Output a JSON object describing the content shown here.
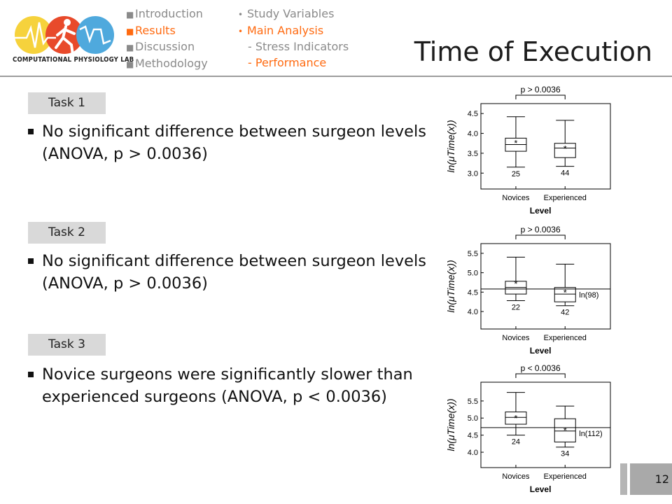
{
  "logo": {
    "caption": "COMPUTATIONAL PHYSIOLOGY LAB"
  },
  "nav": {
    "col1": [
      {
        "label": "Introduction",
        "active": false
      },
      {
        "label": "Results",
        "active": true
      },
      {
        "label": "Discussion",
        "active": false
      },
      {
        "label": "Methodology",
        "active": false
      }
    ],
    "col2": [
      {
        "label": "Study Variables",
        "active": false,
        "sub": false
      },
      {
        "label": "Main Analysis",
        "active": true,
        "sub": false
      },
      {
        "label": "- Stress Indicators",
        "active": false,
        "sub": true
      },
      {
        "label": "- Performance",
        "active": true,
        "sub": true
      }
    ]
  },
  "title": "Time of Execution",
  "tasks": [
    {
      "label": "Task 1",
      "lines": [
        "No significant difference  between surgeon levels",
        "(ANOVA, p > 0.0036)"
      ]
    },
    {
      "label": "Task 2",
      "lines": [
        "No significant difference  between surgeon levels",
        "(ANOVA, p > 0.0036)"
      ]
    },
    {
      "label": "Task 3",
      "lines": [
        "Novice surgeons were significantly slower than",
        "experienced surgeons (ANOVA, p < 0.0036)"
      ]
    }
  ],
  "page_number": "12",
  "chart_data": [
    {
      "type": "box",
      "categories": [
        "Novices",
        "Experienced"
      ],
      "xlabel": "Level",
      "ylabel": "ln(μTime(x))",
      "yticks": [
        3.0,
        3.5,
        4.0,
        4.5
      ],
      "ylim": [
        2.6,
        4.75
      ],
      "significance": "p > 0.0036",
      "boxes": [
        {
          "whisker_low": 3.15,
          "q1": 3.55,
          "median": 3.72,
          "q3": 3.88,
          "whisker_high": 4.42,
          "mean": 3.76,
          "n": "25"
        },
        {
          "whisker_low": 3.17,
          "q1": 3.39,
          "median": 3.63,
          "q3": 3.75,
          "whisker_high": 4.33,
          "mean": 3.62,
          "n": "44"
        }
      ],
      "reference": null
    },
    {
      "type": "box",
      "categories": [
        "Novices",
        "Experienced"
      ],
      "xlabel": "Level",
      "ylabel": "ln(μTime(x))",
      "yticks": [
        4.0,
        4.5,
        5.0,
        5.5
      ],
      "ylim": [
        3.55,
        5.75
      ],
      "significance": "p > 0.0036",
      "boxes": [
        {
          "whisker_low": 4.28,
          "q1": 4.45,
          "median": 4.62,
          "q3": 4.78,
          "whisker_high": 5.4,
          "mean": 4.72,
          "n": "22"
        },
        {
          "whisker_low": 4.15,
          "q1": 4.25,
          "median": 4.45,
          "q3": 4.62,
          "whisker_high": 5.22,
          "mean": 4.5,
          "n": "42"
        }
      ],
      "reference": {
        "value": 4.58,
        "label": "ln(98)"
      }
    },
    {
      "type": "box",
      "categories": [
        "Novices",
        "Experienced"
      ],
      "xlabel": "Level",
      "ylabel": "ln(μTime(x))",
      "yticks": [
        4.0,
        4.5,
        5.0,
        5.5
      ],
      "ylim": [
        3.55,
        6.05
      ],
      "significance": "p < 0.0036",
      "boxes": [
        {
          "whisker_low": 4.5,
          "q1": 4.82,
          "median": 5.02,
          "q3": 5.18,
          "whisker_high": 5.75,
          "mean": 5.0,
          "n": "24"
        },
        {
          "whisker_low": 4.15,
          "q1": 4.3,
          "median": 4.62,
          "q3": 4.98,
          "whisker_high": 5.35,
          "mean": 4.65,
          "n": "34"
        }
      ],
      "reference": {
        "value": 4.72,
        "label": "ln(112)"
      }
    }
  ]
}
